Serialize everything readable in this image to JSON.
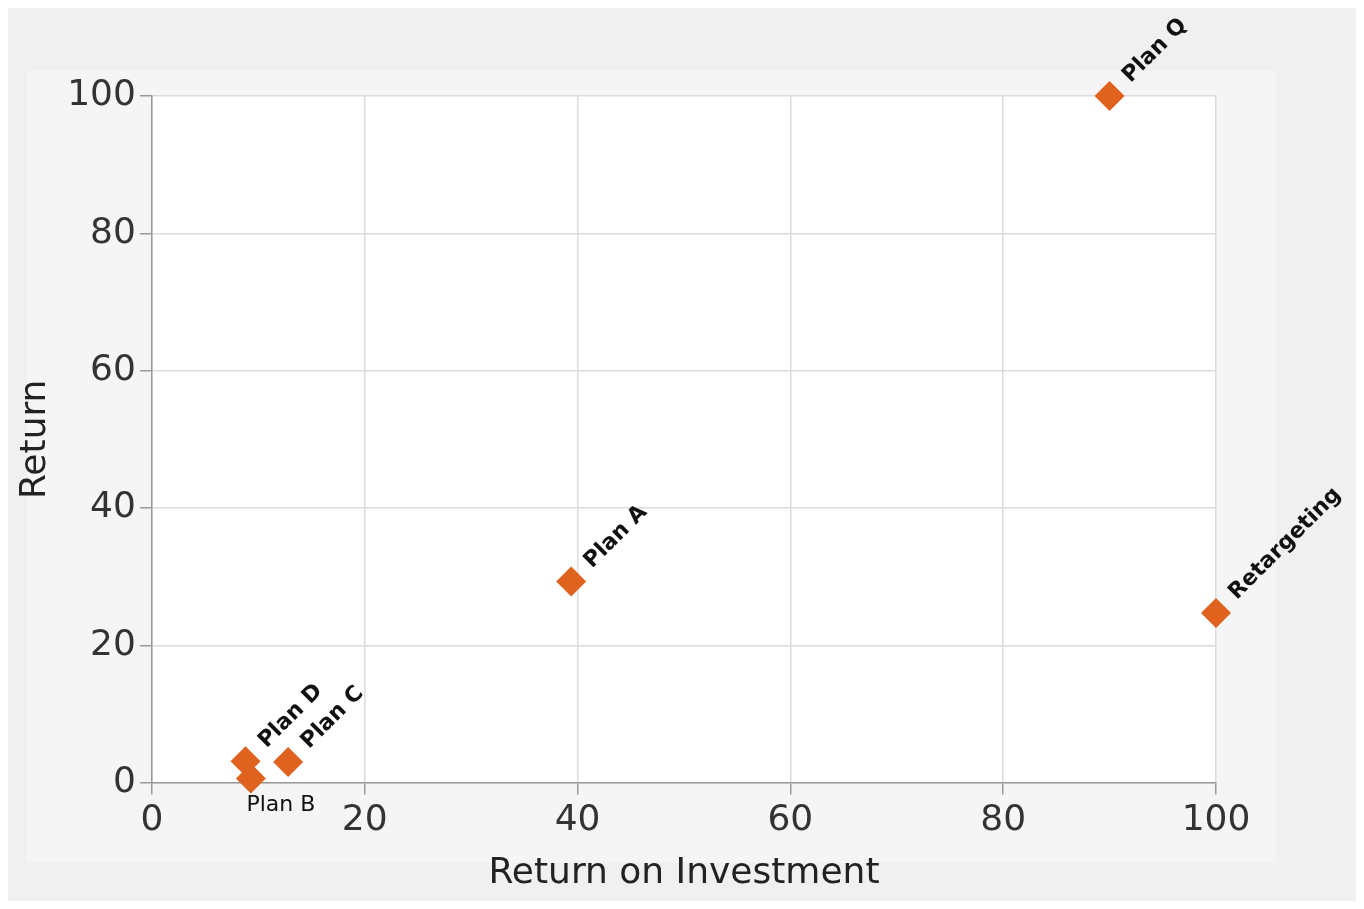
{
  "chart_data": {
    "type": "scatter",
    "xlabel": "Return on Investment",
    "ylabel": "Return",
    "x": [
      90,
      39.4,
      100,
      8.8,
      9.3,
      12.8
    ],
    "values": [
      100,
      29.3,
      24.7,
      3.1,
      0.6,
      3.0
    ],
    "color": "#e0621f",
    "marker": "diamond",
    "xlim": [
      0,
      100
    ],
    "xticks": [
      0,
      20,
      40,
      60,
      80,
      100
    ],
    "ylim": [
      0,
      100
    ],
    "yticks": [
      0,
      20,
      40,
      60,
      80,
      100
    ],
    "grid": true,
    "legend": false,
    "annotations": [
      {
        "text": "Plan Q",
        "x": 90,
        "y": 100
      },
      {
        "text": "Plan A",
        "x": 39.4,
        "y": 29.3
      },
      {
        "text": "Retargeting",
        "x": 100,
        "y": 24.7
      },
      {
        "text": "Plan D",
        "x": 8.8,
        "y": 3.1
      },
      {
        "text": "Plan B",
        "x": 9.3,
        "y": 0.6
      },
      {
        "text": "Plan C",
        "x": 12.8,
        "y": 3.0
      }
    ]
  }
}
